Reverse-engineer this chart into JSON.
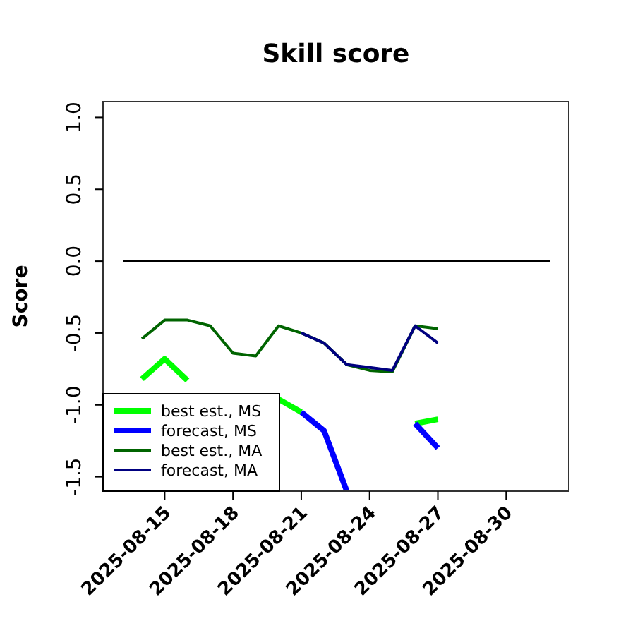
{
  "chart_data": {
    "type": "line",
    "title": "Skill score",
    "ylabel": "Score",
    "x": [
      "2025-08-14",
      "2025-08-15",
      "2025-08-16",
      "2025-08-17",
      "2025-08-18",
      "2025-08-19",
      "2025-08-20",
      "2025-08-21",
      "2025-08-22",
      "2025-08-23",
      "2025-08-24",
      "2025-08-25",
      "2025-08-26",
      "2025-08-27"
    ],
    "series": [
      {
        "name": "best est., MS",
        "color": "#00ff00",
        "values": [
          -0.82,
          -0.68,
          -0.83,
          null,
          null,
          null,
          -0.96,
          -1.05,
          null,
          null,
          null,
          null,
          -1.13,
          -1.1
        ]
      },
      {
        "name": "forecast, MS",
        "color": "#0000ff",
        "values": [
          null,
          null,
          null,
          null,
          null,
          null,
          null,
          -1.05,
          -1.18,
          -1.6,
          null,
          null,
          -1.13,
          -1.3
        ]
      },
      {
        "name": "best est., MA",
        "color": "#006400",
        "values": [
          -0.54,
          -0.41,
          -0.41,
          -0.45,
          -0.64,
          -0.66,
          -0.45,
          -0.5,
          -0.57,
          -0.72,
          -0.76,
          -0.77,
          -0.45,
          -0.47
        ]
      },
      {
        "name": "forecast, MA",
        "color": "#000080",
        "values": [
          null,
          null,
          null,
          null,
          null,
          null,
          null,
          -0.5,
          -0.57,
          -0.72,
          -0.74,
          -0.76,
          -0.45,
          -0.57
        ]
      }
    ],
    "xlim": [
      "2025-08-12T07:00",
      "2025-09-01T18:00"
    ],
    "xticks": [
      "2025-08-15",
      "2025-08-18",
      "2025-08-21",
      "2025-08-24",
      "2025-08-27",
      "2025-08-30"
    ],
    "ylim": [
      -1.6,
      1.11
    ],
    "yticks": [
      {
        "value": 1,
        "label": "1.0"
      },
      {
        "value": 0.5,
        "label": "0.5"
      },
      {
        "value": 0,
        "label": "0.0"
      },
      {
        "value": -0.5,
        "label": "-0.5"
      },
      {
        "value": -1,
        "label": "-1.0"
      },
      {
        "value": -1.5,
        "label": "-1.5"
      }
    ],
    "ref_lines": [
      {
        "axis": "y",
        "value": 0,
        "color": "#000000"
      }
    ],
    "legend": "bottom left"
  }
}
